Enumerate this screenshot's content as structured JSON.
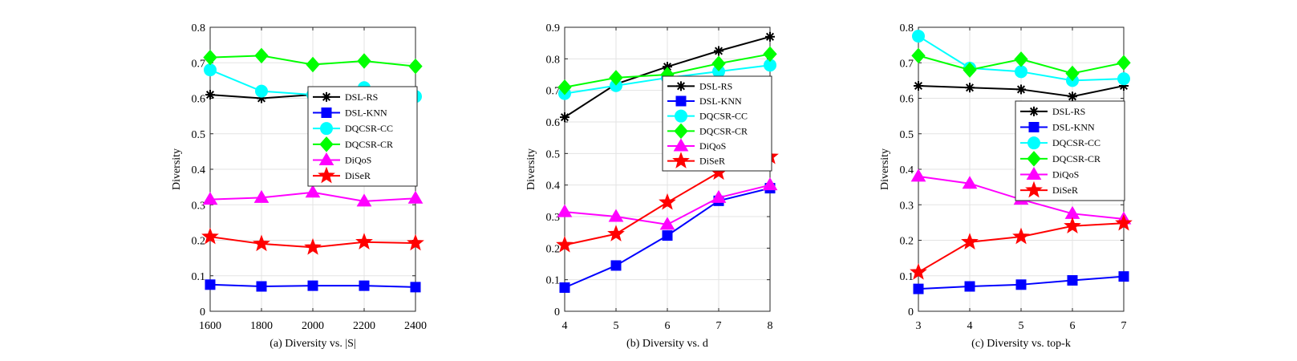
{
  "chart_data": [
    {
      "type": "line",
      "caption": "(a) Diversity vs. |S|",
      "ylabel": "Diversity",
      "x": [
        1600,
        1800,
        2000,
        2200,
        2400
      ],
      "xticks": [
        "1600",
        "1800",
        "2000",
        "2200",
        "2400"
      ],
      "xlim": [
        1600,
        2400
      ],
      "ylim": [
        0,
        0.8
      ],
      "yticks": [
        "0",
        "0.1",
        "0.2",
        "0.3",
        "0.4",
        "0.5",
        "0.6",
        "0.7",
        "0.8"
      ],
      "grid": true,
      "legend_position": "right",
      "series": [
        {
          "name": "DSL-RS",
          "values": [
            0.61,
            0.6,
            0.61,
            0.61,
            0.6
          ],
          "color": "#000000",
          "marker": "asterisk"
        },
        {
          "name": "DSL-KNN",
          "values": [
            0.075,
            0.07,
            0.072,
            0.072,
            0.068
          ],
          "color": "#0000ff",
          "marker": "square"
        },
        {
          "name": "DQCSR-CC",
          "values": [
            0.68,
            0.62,
            0.61,
            0.63,
            0.605
          ],
          "color": "#00ffff",
          "marker": "circle"
        },
        {
          "name": "DQCSR-CR",
          "values": [
            0.715,
            0.72,
            0.695,
            0.705,
            0.69
          ],
          "color": "#00ff00",
          "marker": "diamond"
        },
        {
          "name": "DiQoS",
          "values": [
            0.315,
            0.32,
            0.335,
            0.31,
            0.318
          ],
          "color": "#ff00ff",
          "marker": "triangle"
        },
        {
          "name": "DiSeR",
          "values": [
            0.21,
            0.19,
            0.18,
            0.195,
            0.192
          ],
          "color": "#ff0000",
          "marker": "star"
        }
      ]
    },
    {
      "type": "line",
      "caption": "(b) Diversity vs. d",
      "ylabel": "Diversity",
      "x": [
        4,
        5,
        6,
        7,
        8
      ],
      "xticks": [
        "4",
        "5",
        "6",
        "7",
        "8"
      ],
      "xlim": [
        4,
        8
      ],
      "ylim": [
        0,
        0.9
      ],
      "yticks": [
        "0",
        "0.1",
        "0.2",
        "0.3",
        "0.4",
        "0.5",
        "0.6",
        "0.7",
        "0.8",
        "0.9"
      ],
      "grid": true,
      "legend_position": "right",
      "series": [
        {
          "name": "DSL-RS",
          "values": [
            0.615,
            0.72,
            0.775,
            0.825,
            0.87
          ],
          "color": "#000000",
          "marker": "asterisk"
        },
        {
          "name": "DSL-KNN",
          "values": [
            0.075,
            0.145,
            0.24,
            0.35,
            0.39
          ],
          "color": "#0000ff",
          "marker": "square"
        },
        {
          "name": "DQCSR-CC",
          "values": [
            0.69,
            0.715,
            0.74,
            0.76,
            0.78
          ],
          "color": "#00ffff",
          "marker": "circle"
        },
        {
          "name": "DQCSR-CR",
          "values": [
            0.71,
            0.74,
            0.75,
            0.785,
            0.815
          ],
          "color": "#00ff00",
          "marker": "diamond"
        },
        {
          "name": "DiQoS",
          "values": [
            0.315,
            0.3,
            0.275,
            0.36,
            0.4
          ],
          "color": "#ff00ff",
          "marker": "triangle"
        },
        {
          "name": "DiSeR",
          "values": [
            0.21,
            0.245,
            0.345,
            0.44,
            0.49
          ],
          "color": "#ff0000",
          "marker": "star"
        }
      ]
    },
    {
      "type": "line",
      "caption": "(c) Diversity vs. top-k",
      "ylabel": "Diversity",
      "x": [
        3,
        4,
        5,
        6,
        7
      ],
      "xticks": [
        "3",
        "4",
        "5",
        "6",
        "7"
      ],
      "xlim": [
        3,
        7
      ],
      "ylim": [
        0,
        0.8
      ],
      "yticks": [
        "0",
        "0.1",
        "0.2",
        "0.3",
        "0.4",
        "0.5",
        "0.6",
        "0.7",
        "0.8"
      ],
      "grid": true,
      "legend_position": "right",
      "series": [
        {
          "name": "DSL-RS",
          "values": [
            0.635,
            0.63,
            0.625,
            0.605,
            0.635
          ],
          "color": "#000000",
          "marker": "asterisk"
        },
        {
          "name": "DSL-KNN",
          "values": [
            0.063,
            0.07,
            0.075,
            0.087,
            0.098
          ],
          "color": "#0000ff",
          "marker": "square"
        },
        {
          "name": "DQCSR-CC",
          "values": [
            0.775,
            0.685,
            0.675,
            0.65,
            0.655
          ],
          "color": "#00ffff",
          "marker": "circle"
        },
        {
          "name": "DQCSR-CR",
          "values": [
            0.72,
            0.68,
            0.71,
            0.67,
            0.7
          ],
          "color": "#00ff00",
          "marker": "diamond"
        },
        {
          "name": "DiQoS",
          "values": [
            0.38,
            0.36,
            0.315,
            0.275,
            0.26
          ],
          "color": "#ff00ff",
          "marker": "triangle"
        },
        {
          "name": "DiSeR",
          "values": [
            0.11,
            0.195,
            0.21,
            0.24,
            0.248
          ],
          "color": "#ff0000",
          "marker": "star"
        }
      ]
    }
  ]
}
